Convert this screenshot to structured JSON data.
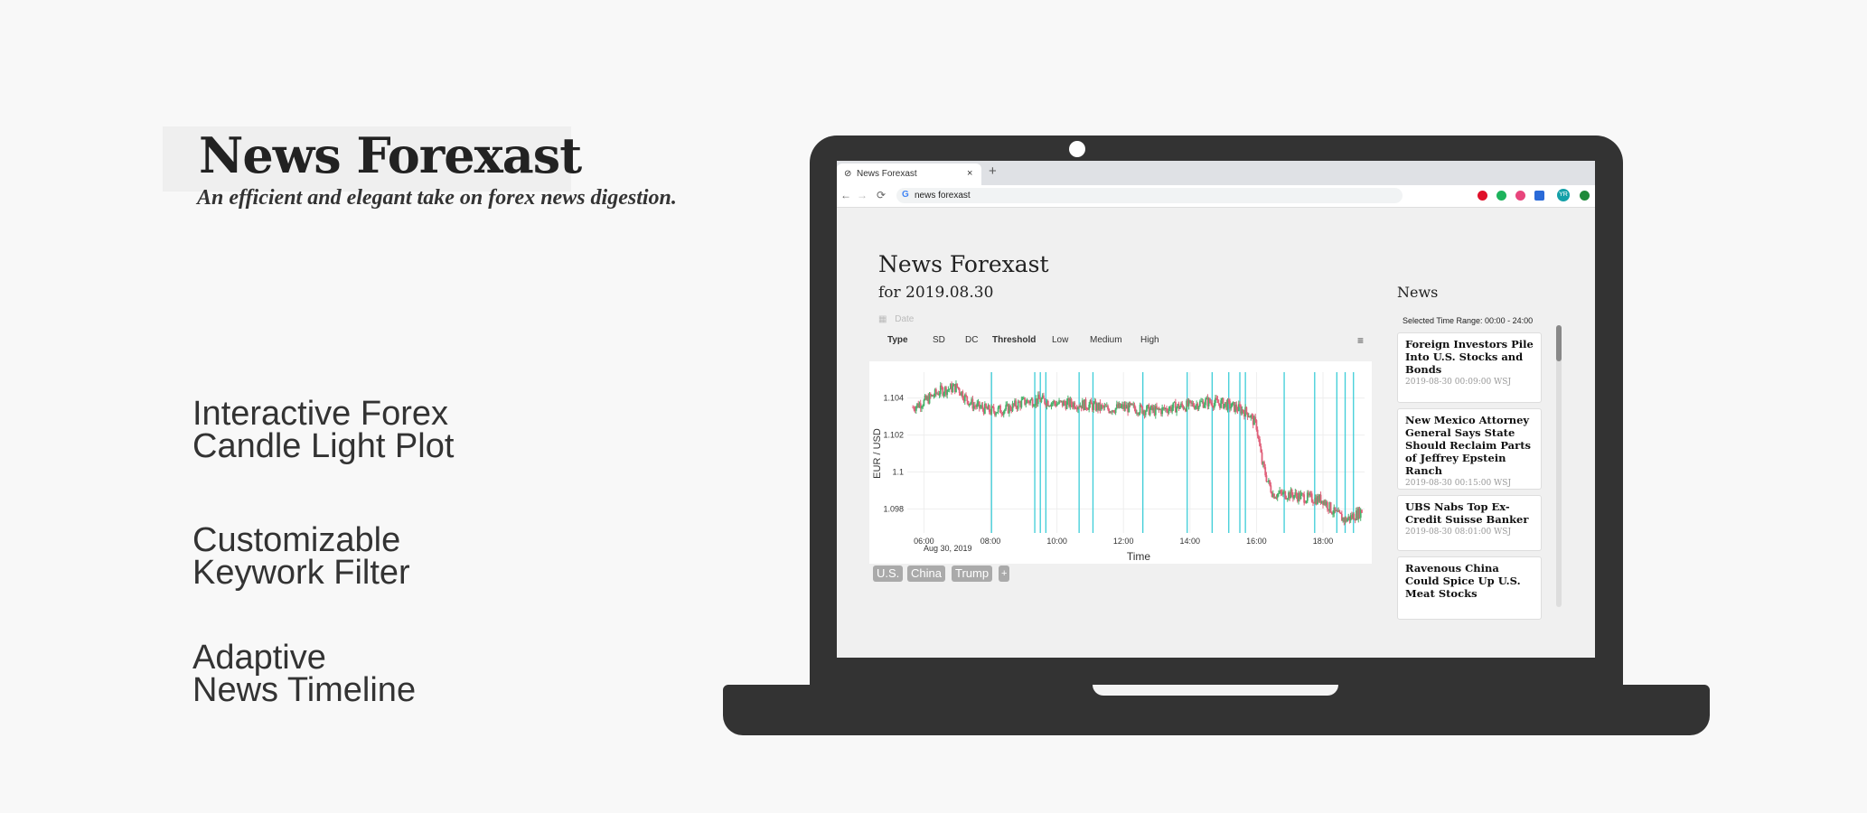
{
  "hero": {
    "title": "News Forexast",
    "subtitle": "An efficient and elegant take on forex news digestion."
  },
  "features": [
    {
      "line1": "Interactive Forex",
      "line2": "Candle Light Plot"
    },
    {
      "line1": "Customizable",
      "line2": "Keywork Filter"
    },
    {
      "line1": "Adaptive",
      "line2": "News Timeline"
    }
  ],
  "browser": {
    "tab_title": "News Forexast",
    "tab_close": "×",
    "new_tab": "+",
    "address": "news forexast",
    "google_glyph": "G",
    "back_glyph": "←",
    "forward_glyph": "→",
    "reload_glyph": "⟳",
    "extension_colors": [
      "#e0102a",
      "#1db35c",
      "#e8457c",
      "#2a6ad8",
      "#14a0a8",
      "#1f8a3a"
    ],
    "profile_initials": "YR"
  },
  "app": {
    "title": "News Forexast",
    "date_line": "for 2019.08.30",
    "date_placeholder": "Date",
    "filters": [
      "Type",
      "SD",
      "DC",
      "Threshold",
      "Low",
      "Medium",
      "High"
    ],
    "filter_menu_icon": "≡",
    "keywords": [
      "U.S.",
      "China",
      "Trump",
      "+"
    ]
  },
  "news": {
    "title": "News",
    "range": "Selected Time Range: 00:00 - 24:00",
    "items": [
      {
        "headline": "Foreign Investors Pile Into U.S. Stocks and Bonds",
        "meta": "2019-08-30 00:09:00  WSJ"
      },
      {
        "headline": "New Mexico Attorney General Says State Should Reclaim Parts of Jeffrey Epstein Ranch",
        "meta": "2019-08-30 00:15:00  WSJ"
      },
      {
        "headline": "UBS Nabs Top Ex-Credit Suisse Banker",
        "meta": "2019-08-30 08:01:00  WSJ"
      },
      {
        "headline": "Ravenous China Could Spice Up U.S. Meat Stocks",
        "meta": ""
      }
    ]
  },
  "chart_data": {
    "type": "line",
    "title": "",
    "xlabel": "Time",
    "ylabel": "EUR / USD",
    "x_ticks": [
      "06:00",
      "08:00",
      "10:00",
      "12:00",
      "14:00",
      "16:00",
      "18:00"
    ],
    "x_date_label": "Aug 30, 2019",
    "y_ticks": [
      1.098,
      1.1,
      1.102,
      1.104
    ],
    "xlim": [
      "05:30",
      "19:15"
    ],
    "ylim": [
      1.0967,
      1.1054
    ],
    "colors": {
      "up": "#46b36b",
      "down": "#e0607a",
      "news_line": "#3ccdd8"
    },
    "series": [
      {
        "x": [
          "05:40",
          "06:00",
          "06:30",
          "07:00",
          "07:15",
          "07:30",
          "08:00",
          "08:30",
          "09:00",
          "09:30",
          "10:00",
          "10:30",
          "11:00",
          "11:30",
          "12:00",
          "12:30",
          "13:00",
          "13:30",
          "14:00",
          "14:30",
          "15:00",
          "15:30",
          "15:45",
          "16:00",
          "16:10",
          "16:20",
          "16:30",
          "17:00",
          "17:30",
          "18:00",
          "18:20",
          "18:40",
          "19:00",
          "19:10"
        ],
        "y": [
          1.1035,
          1.1038,
          1.1044,
          1.1046,
          1.104,
          1.1036,
          1.1033,
          1.1034,
          1.1038,
          1.1039,
          1.1037,
          1.1037,
          1.1036,
          1.1034,
          1.1035,
          1.1034,
          1.1033,
          1.1035,
          1.1036,
          1.1038,
          1.1037,
          1.1034,
          1.1032,
          1.1025,
          1.1005,
          1.0995,
          1.0988,
          1.0988,
          1.0986,
          1.0985,
          1.0978,
          1.0974,
          1.0977,
          1.0979
        ]
      }
    ],
    "news_times": [
      "08:02",
      "09:20",
      "09:30",
      "09:40",
      "10:40",
      "11:05",
      "12:35",
      "13:55",
      "14:40",
      "15:10",
      "15:30",
      "15:40",
      "16:50",
      "17:45",
      "18:25",
      "18:40",
      "18:55"
    ]
  }
}
